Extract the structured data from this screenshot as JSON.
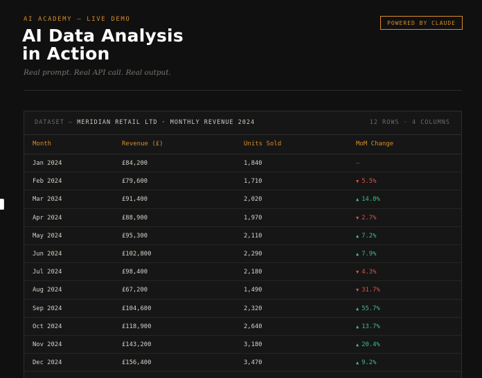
{
  "header": {
    "eyebrow": "AI ACADEMY — LIVE DEMO",
    "title_line1": "AI Data Analysis",
    "title_line2": "in Action",
    "subtitle": "Real prompt. Real API call. Real output.",
    "badge": "POWERED BY CLAUDE"
  },
  "dataset": {
    "label": "DATASET",
    "separator": "—",
    "name": "MERIDIAN RETAIL LTD · MONTHLY REVENUE 2024",
    "meta": "12 ROWS · 4 COLUMNS"
  },
  "colors": {
    "accent": "#d98c2b",
    "up": "#3fbf86",
    "down": "#e0524b",
    "background": "#101010"
  },
  "table": {
    "columns": [
      "Month",
      "Revenue (£)",
      "Units Sold",
      "MoM Change"
    ],
    "rows": [
      {
        "month": "Jan 2024",
        "revenue": "£84,200",
        "units": "1,840",
        "change": "—",
        "dir": "none"
      },
      {
        "month": "Feb 2024",
        "revenue": "£79,600",
        "units": "1,710",
        "change": "5.5%",
        "dir": "down"
      },
      {
        "month": "Mar 2024",
        "revenue": "£91,400",
        "units": "2,020",
        "change": "14.8%",
        "dir": "up"
      },
      {
        "month": "Apr 2024",
        "revenue": "£88,900",
        "units": "1,970",
        "change": "2.7%",
        "dir": "down"
      },
      {
        "month": "May 2024",
        "revenue": "£95,300",
        "units": "2,110",
        "change": "7.2%",
        "dir": "up"
      },
      {
        "month": "Jun 2024",
        "revenue": "£102,800",
        "units": "2,290",
        "change": "7.9%",
        "dir": "up"
      },
      {
        "month": "Jul 2024",
        "revenue": "£98,400",
        "units": "2,180",
        "change": "4.3%",
        "dir": "down"
      },
      {
        "month": "Aug 2024",
        "revenue": "£67,200",
        "units": "1,490",
        "change": "31.7%",
        "dir": "down"
      },
      {
        "month": "Sep 2024",
        "revenue": "£104,600",
        "units": "2,320",
        "change": "55.7%",
        "dir": "up"
      },
      {
        "month": "Oct 2024",
        "revenue": "£118,900",
        "units": "2,640",
        "change": "13.7%",
        "dir": "up"
      },
      {
        "month": "Nov 2024",
        "revenue": "£143,200",
        "units": "3,180",
        "change": "20.4%",
        "dir": "up"
      },
      {
        "month": "Dec 2024",
        "revenue": "£156,400",
        "units": "3,470",
        "change": "9.2%",
        "dir": "up"
      }
    ]
  }
}
